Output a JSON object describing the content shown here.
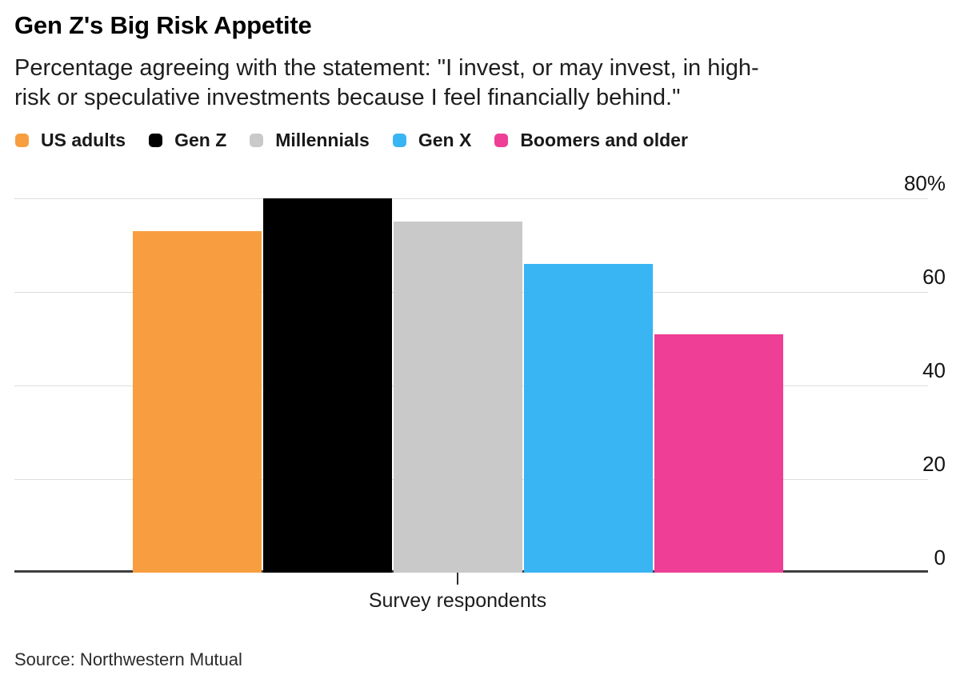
{
  "chart_data": {
    "type": "bar",
    "title": "Gen Z's Big Risk Appetite",
    "subtitle": "Percentage agreeing with the statement: \"I invest, or may invest, in high-risk or speculative investments because I feel financially behind.\"",
    "subtitle_lines": [
      "Percentage agreeing with the statement: \"I invest, or may invest, in high-",
      "risk or speculative investments because I feel financially behind.\""
    ],
    "categories": [
      "US adults",
      "Gen Z",
      "Millennials",
      "Gen X",
      "Boomers and older"
    ],
    "values": [
      73,
      80,
      75,
      66,
      51
    ],
    "colors": [
      "#F89E40",
      "#000000",
      "#C9C9C9",
      "#39B5F3",
      "#EF3E95"
    ],
    "xlabel": "Survey respondents",
    "ylabel": "",
    "ylim": [
      0,
      80
    ],
    "yticks": [
      80,
      60,
      40,
      20,
      0
    ],
    "ytick_labels": [
      "80%",
      "60",
      "40",
      "20",
      "0"
    ],
    "legend_position": "top",
    "grid": "horizontal",
    "source": "Source: Northwestern Mutual"
  }
}
